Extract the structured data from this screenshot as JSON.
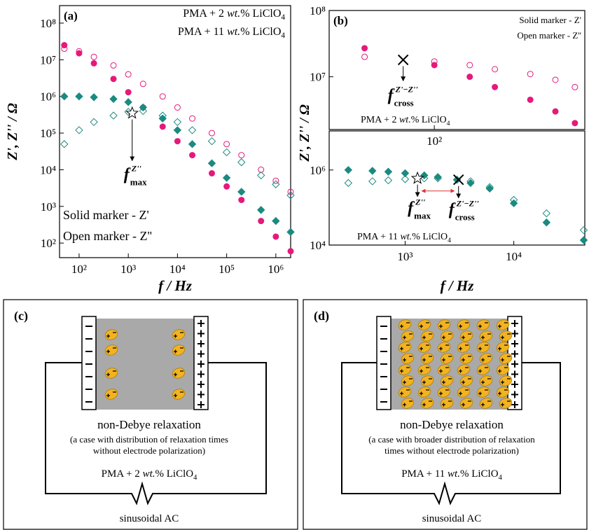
{
  "chart_data": [
    {
      "type": "scatter",
      "panel_label": "(a)",
      "log_x": true,
      "log_y": true,
      "ylabel": "Z', Z'' / Ω",
      "xlabel": "f / Hz",
      "xlim": [
        40,
        2000000
      ],
      "xticks": [
        {
          "value": 100,
          "label": "10²"
        },
        {
          "value": 1000,
          "label": "10³"
        },
        {
          "value": 10000,
          "label": "10⁴"
        },
        {
          "value": 100000,
          "label": "10⁵"
        },
        {
          "value": 1000000,
          "label": "10⁶"
        }
      ],
      "ylim": [
        40,
        300000000
      ],
      "yticks": [
        {
          "value": 100,
          "label": "10²"
        },
        {
          "value": 1000,
          "label": "10³"
        },
        {
          "value": 10000,
          "label": "10⁴"
        },
        {
          "value": 100000,
          "label": "10⁵"
        },
        {
          "value": 1000000,
          "label": "10⁶"
        },
        {
          "value": 10000000,
          "label": "10⁷"
        },
        {
          "value": 100000000,
          "label": "10⁸"
        }
      ],
      "notes": [
        "Solid marker - Z'",
        "Open marker - Z''"
      ],
      "series": [
        {
          "name": "PMA + 2 wt.% LiClO4",
          "color": "#e5197c",
          "marker": "circle",
          "x": [
            50,
            100,
            200,
            500,
            1000,
            2000,
            5000,
            10000,
            20000,
            50000,
            100000,
            200000,
            500000,
            1000000,
            2000000
          ],
          "z_real": [
            25000000,
            15000000,
            8000000,
            3000000,
            1300000,
            500000,
            150000,
            60000,
            25000,
            8000,
            3500,
            1500,
            400,
            150,
            60
          ],
          "z_imag": [
            20000000,
            17000000,
            12000000,
            7000000,
            4000000,
            2200000,
            1000000,
            500000,
            250000,
            100000,
            50000,
            25000,
            10000,
            5000,
            2500
          ]
        },
        {
          "name": "PMA + 11 wt.% LiClO4",
          "color": "#1b8a7f",
          "marker": "diamond",
          "x": [
            50,
            100,
            200,
            500,
            1000,
            2000,
            5000,
            10000,
            20000,
            50000,
            100000,
            200000,
            500000,
            1000000,
            2000000
          ],
          "z_real": [
            1000000,
            1000000,
            950000,
            850000,
            700000,
            500000,
            250000,
            120000,
            50000,
            15000,
            6000,
            2500,
            800,
            400,
            200
          ],
          "z_imag": [
            50000,
            120000,
            200000,
            300000,
            380000,
            400000,
            300000,
            200000,
            120000,
            60000,
            30000,
            16000,
            7000,
            4000,
            2000
          ]
        }
      ],
      "annotations": [
        {
          "kind": "star",
          "x": 1200,
          "y": 350000,
          "f": "f",
          "sub": "max",
          "sup": "Z''"
        }
      ]
    },
    {
      "type": "scatter",
      "panel_label": "(b)",
      "log_x": true,
      "log_y": true,
      "ylabel": "Z', Z'' / Ω",
      "xlim": [
        30,
        560
      ],
      "xticks": [
        {
          "value": 100,
          "label": "10²"
        }
      ],
      "ylim": [
        1600000,
        100000000
      ],
      "yticks": [
        {
          "value": 10000000,
          "label": "10⁷"
        },
        {
          "value": 100000000,
          "label": "10⁸"
        }
      ],
      "notes": [
        "Solid marker - Z'",
        "Open marker - Z''"
      ],
      "series": [
        {
          "name": "PMA + 2 wt.% LiClO4",
          "color": "#e5197c",
          "marker": "circle",
          "x": [
            45,
            100,
            150,
            200,
            300,
            400,
            500
          ],
          "z_real": [
            27000000,
            15000000,
            10000000,
            7000000,
            4500000,
            3000000,
            2000000
          ],
          "z_imag": [
            20000000,
            17000000,
            15000000,
            13000000,
            11000000,
            9000000,
            7000000
          ]
        }
      ],
      "annotations": [
        {
          "kind": "cross",
          "x": 70,
          "y": 18000000,
          "f": "f",
          "sub": "cross",
          "sup": "Z'−Z''"
        }
      ]
    },
    {
      "type": "scatter",
      "log_x": true,
      "log_y": true,
      "xlabel": "f / Hz",
      "xlim": [
        200,
        45000
      ],
      "xticks": [
        {
          "value": 1000,
          "label": "10³"
        },
        {
          "value": 10000,
          "label": "10⁴"
        }
      ],
      "ylim": [
        10000,
        11000000
      ],
      "yticks": [
        {
          "value": 10000,
          "label": "10⁴"
        },
        {
          "value": 1000000,
          "label": "10⁶"
        }
      ],
      "series": [
        {
          "name": "PMA + 11 wt.% LiClO4",
          "color": "#1b8a7f",
          "marker": "diamond",
          "x": [
            300,
            500,
            700,
            1000,
            1500,
            2000,
            3000,
            4000,
            6000,
            10000,
            20000,
            44000
          ],
          "z_real": [
            1000000,
            950000,
            900000,
            820000,
            720000,
            650000,
            550000,
            450000,
            320000,
            130000,
            40000,
            13500
          ],
          "z_imag": [
            450000,
            500000,
            530000,
            570000,
            600000,
            600000,
            550000,
            500000,
            350000,
            160000,
            70000,
            25000
          ]
        }
      ],
      "annotations": [
        {
          "kind": "star",
          "x": 1300,
          "y": 600000,
          "f": "f",
          "sub": "max",
          "sup": "Z''"
        },
        {
          "kind": "cross",
          "x": 3100,
          "y": 550000,
          "f": "f",
          "sub": "cross",
          "sup": "Z'−Z''"
        }
      ]
    }
  ],
  "diagrams": [
    {
      "label": "(c)",
      "title": "non-Debye relaxation",
      "note_lines": [
        "(a case with distribution of relaxation times",
        "without electrode polarization)"
      ],
      "sample": "PMA + 2 wt.% LiClO4",
      "source": "sinusoidal AC"
    },
    {
      "label": "(d)",
      "title": "non-Debye relaxation",
      "note_lines": [
        "(a case with broader distribution of relaxation",
        "times without electrode polarization)"
      ],
      "sample": "PMA + 11 wt.% LiClO4",
      "source": "sinusoidal AC"
    }
  ]
}
